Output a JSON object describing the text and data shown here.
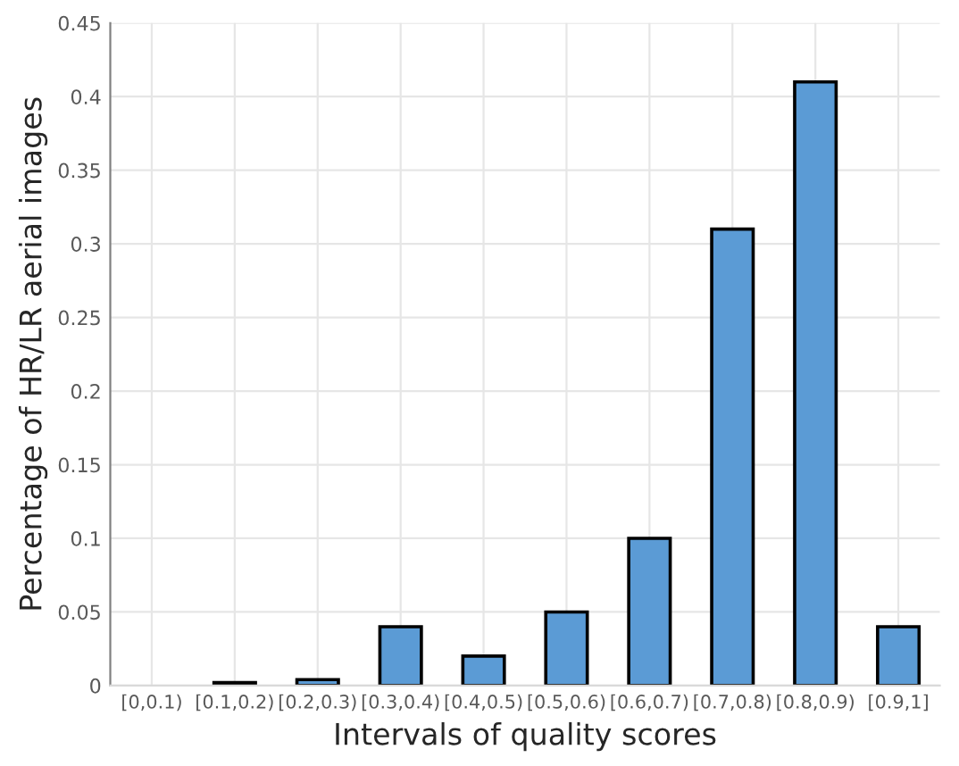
{
  "chart_data": {
    "type": "bar",
    "xlabel": "Intervals of quality scores",
    "ylabel": "Percentage of HR/LR aerial images",
    "categories": [
      "[0,0.1)",
      "[0.1,0.2)",
      "[0.2,0.3)",
      "[0.3,0.4)",
      "[0.4,0.5)",
      "[0.5,0.6)",
      "[0.6,0.7)",
      "[0.7,0.8)",
      "[0.8,0.9)",
      "[0.9,1]"
    ],
    "values": [
      null,
      0.002,
      0.004,
      0.04,
      0.02,
      0.05,
      0.1,
      0.31,
      0.41,
      0.04
    ],
    "color": "#5b9bd5",
    "ylim": [
      0,
      0.45
    ],
    "yticks": [
      0,
      0.05,
      0.1,
      0.15,
      0.2,
      0.25,
      0.3,
      0.35,
      0.4,
      0.45
    ],
    "grid": true
  }
}
